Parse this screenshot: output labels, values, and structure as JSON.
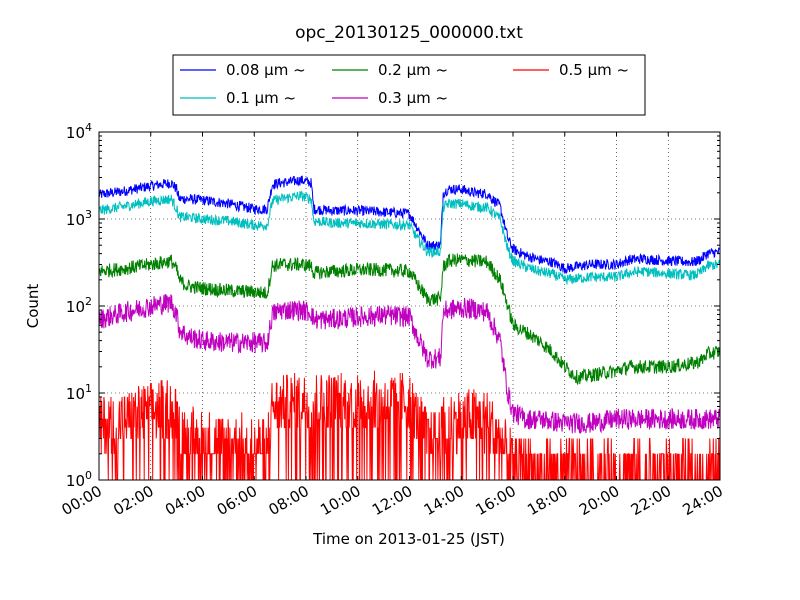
{
  "chart_data": {
    "type": "line",
    "title": "opc_20130125_000000.txt",
    "xlabel": "Time on 2013-01-25 (JST)",
    "ylabel": "Count",
    "x_ticks": [
      "00:00",
      "02:00",
      "04:00",
      "06:00",
      "08:00",
      "10:00",
      "12:00",
      "14:00",
      "16:00",
      "18:00",
      "20:00",
      "22:00",
      "24:00"
    ],
    "xlim": [
      "00:00",
      "24:00"
    ],
    "y_scale": "log",
    "ylim": [
      1,
      10000
    ],
    "y_ticks": [
      {
        "base": "10",
        "exp": "0"
      },
      {
        "base": "10",
        "exp": "1"
      },
      {
        "base": "10",
        "exp": "2"
      },
      {
        "base": "10",
        "exp": "3"
      },
      {
        "base": "10",
        "exp": "4"
      }
    ],
    "grid": true,
    "legend_position": "top-center",
    "series": [
      {
        "name": "0.08 μm ~",
        "color": "#0000ff",
        "noise": 0.06,
        "x": [
          0,
          1,
          2,
          2.8,
          3.0,
          3.1,
          3.4,
          4,
          5,
          6,
          6.5,
          6.7,
          7,
          7.5,
          7.8,
          8.2,
          8.3,
          9,
          10,
          11,
          12,
          12.3,
          12.7,
          13,
          13.2,
          13.3,
          13.5,
          14,
          14.5,
          15,
          15.5,
          15.8,
          16,
          16.5,
          17,
          17.5,
          18,
          19,
          20,
          20.5,
          21,
          22,
          23,
          23.3,
          23.5,
          24
        ],
        "y": [
          1900,
          2100,
          2400,
          2600,
          2200,
          1700,
          1700,
          1650,
          1500,
          1300,
          1300,
          2500,
          2600,
          2700,
          2800,
          2600,
          1300,
          1250,
          1250,
          1200,
          1150,
          800,
          500,
          500,
          500,
          2000,
          2200,
          2200,
          2000,
          1950,
          1400,
          600,
          450,
          380,
          340,
          320,
          270,
          300,
          300,
          340,
          350,
          330,
          320,
          350,
          400,
          420
        ]
      },
      {
        "name": "0.1 μm ~",
        "color": "#00bfbf",
        "noise": 0.06,
        "x": [
          0,
          1,
          2,
          2.8,
          3.0,
          3.1,
          3.4,
          4,
          5,
          6,
          6.5,
          6.7,
          7,
          7.5,
          7.8,
          8.2,
          8.3,
          9,
          10,
          11,
          12,
          12.3,
          12.7,
          13,
          13.2,
          13.3,
          13.5,
          14,
          14.5,
          15,
          15.5,
          15.8,
          16,
          16.5,
          17,
          17.5,
          18,
          19,
          20,
          20.5,
          21,
          22,
          23,
          23.3,
          23.5,
          24
        ],
        "y": [
          1250,
          1400,
          1600,
          1700,
          1300,
          1050,
          1050,
          1000,
          950,
          850,
          850,
          1600,
          1700,
          1800,
          1850,
          1700,
          950,
          900,
          900,
          870,
          850,
          600,
          420,
          420,
          420,
          1350,
          1500,
          1500,
          1400,
          1350,
          1000,
          450,
          330,
          280,
          250,
          235,
          200,
          215,
          215,
          240,
          250,
          235,
          225,
          250,
          290,
          300
        ]
      },
      {
        "name": "0.2 μm ~",
        "color": "#008000",
        "noise": 0.08,
        "x": [
          0,
          1,
          2,
          2.8,
          3.0,
          3.1,
          3.4,
          4,
          5,
          6,
          6.5,
          6.7,
          7,
          7.5,
          7.8,
          8.2,
          8.3,
          9,
          10,
          11,
          12,
          12.3,
          12.7,
          13,
          13.2,
          13.3,
          13.5,
          14,
          14.5,
          15,
          15.5,
          15.8,
          16,
          16.5,
          17,
          17.5,
          18,
          18.5,
          19,
          20,
          20.5,
          21,
          22,
          23,
          23.3,
          23.5,
          24
        ],
        "y": [
          250,
          270,
          300,
          330,
          260,
          200,
          170,
          160,
          150,
          145,
          140,
          290,
          300,
          300,
          300,
          290,
          240,
          250,
          260,
          260,
          250,
          180,
          120,
          120,
          120,
          280,
          330,
          340,
          330,
          320,
          200,
          100,
          60,
          50,
          40,
          30,
          20,
          15,
          16,
          18,
          20,
          20,
          20,
          22,
          24,
          28,
          30
        ]
      },
      {
        "name": "0.3 μm ~",
        "color": "#bf00bf",
        "noise": 0.12,
        "x": [
          0,
          1,
          2,
          2.8,
          3.0,
          3.1,
          3.4,
          4,
          5,
          6,
          6.5,
          6.7,
          7,
          7.5,
          7.8,
          8.2,
          8.3,
          9,
          10,
          11,
          12,
          12.3,
          12.7,
          13,
          13.2,
          13.3,
          13.5,
          14,
          14.5,
          15,
          15.5,
          15.8,
          16,
          16.5,
          17,
          18,
          19,
          20,
          21,
          22,
          23,
          24
        ],
        "y": [
          70,
          85,
          100,
          110,
          80,
          55,
          45,
          40,
          38,
          38,
          37,
          80,
          90,
          90,
          90,
          85,
          70,
          70,
          75,
          78,
          75,
          45,
          25,
          25,
          25,
          85,
          90,
          95,
          92,
          85,
          40,
          10,
          6,
          5,
          5,
          4.5,
          4.5,
          5,
          5,
          5,
          5,
          5
        ]
      },
      {
        "name": "0.5 μm ~",
        "color": "#ff0000",
        "noise": 0.35,
        "x": [
          0,
          2,
          2.8,
          3.0,
          3.4,
          6,
          6.5,
          6.7,
          8,
          9,
          12,
          12.3,
          12.7,
          13,
          13.2,
          13.3,
          14,
          15,
          15.5,
          15.8,
          16,
          18,
          24
        ],
        "y": [
          4,
          6,
          7,
          5,
          3,
          2.5,
          2.5,
          7,
          8,
          8,
          8,
          5,
          3,
          3,
          3,
          4,
          5,
          5,
          3,
          2,
          1.5,
          1.3,
          1.3
        ]
      }
    ]
  }
}
